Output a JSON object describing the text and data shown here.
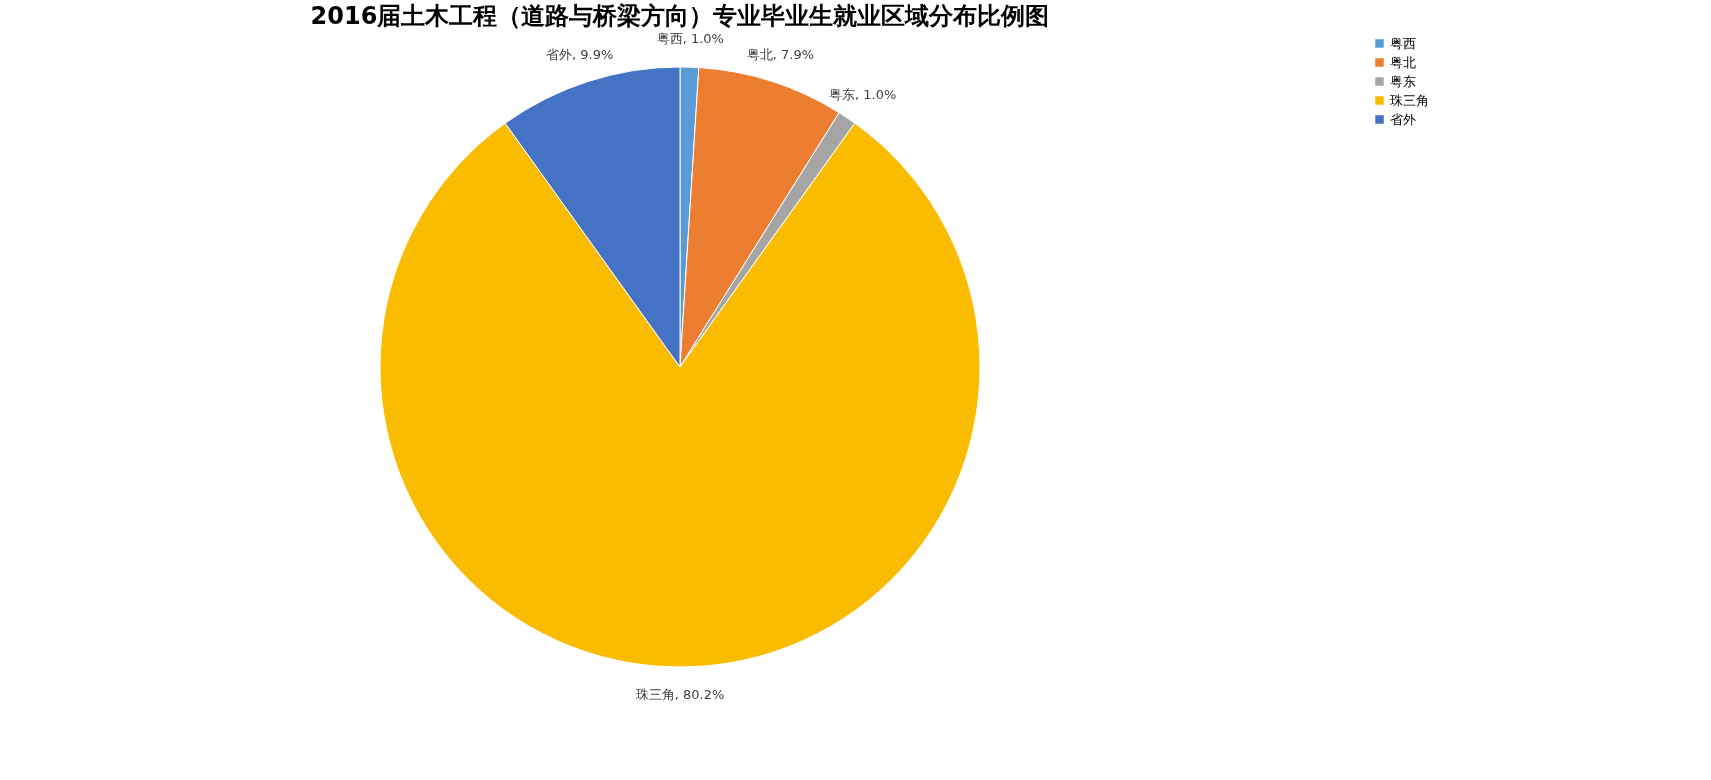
{
  "chart_data": {
    "type": "pie",
    "title": "2016届土木工程（道路与桥梁方向）专业毕业生就业区域分布比例图",
    "categories": [
      "粤西",
      "粤北",
      "粤东",
      "珠三角",
      "省外"
    ],
    "values": [
      1.0,
      7.9,
      1.0,
      80.2,
      9.9
    ],
    "colors": [
      "#5b9bd5",
      "#ed7d31",
      "#a5a5a5",
      "#f9bc00",
      "#4472c4"
    ],
    "value_labels": [
      "粤西, 1.0%",
      "粤北, 7.9%",
      "粤东, 1.0%",
      "珠三角, 80.2%",
      "省外, 9.9%"
    ],
    "legend": "right"
  }
}
